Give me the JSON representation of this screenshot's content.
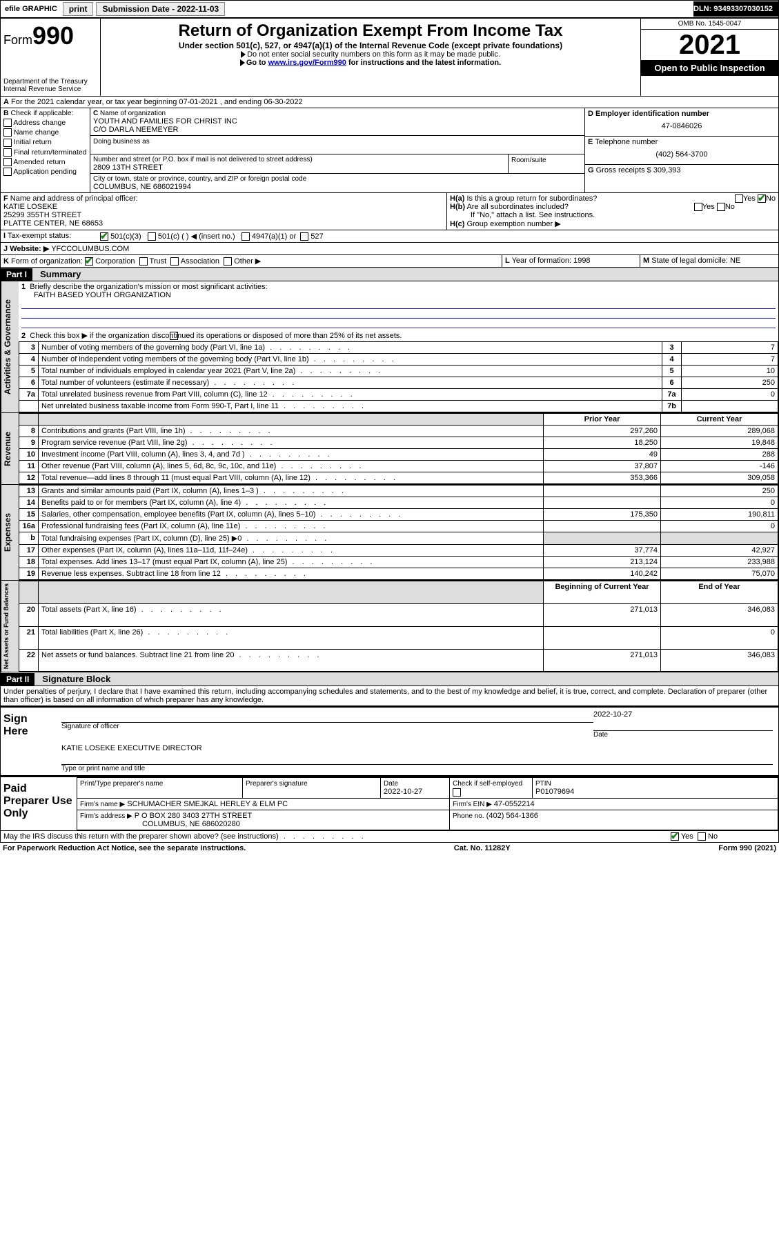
{
  "topbar": {
    "efile": "efile GRAPHIC",
    "print": "print",
    "subdate_label": "Submission Date - 2022-11-03",
    "dln": "DLN: 93493307030152"
  },
  "header": {
    "form_word": "Form",
    "form_num": "990",
    "dept": "Department of the Treasury",
    "irs": "Internal Revenue Service",
    "title": "Return of Organization Exempt From Income Tax",
    "sub": "Under section 501(c), 527, or 4947(a)(1) of the Internal Revenue Code (except private foundations)",
    "note1": "Do not enter social security numbers on this form as it may be made public.",
    "note2_pre": "Go to ",
    "note2_link": "www.irs.gov/Form990",
    "note2_post": " for instructions and the latest information.",
    "omb": "OMB No. 1545-0047",
    "year": "2021",
    "open": "Open to Public Inspection"
  },
  "A": {
    "line": "For the 2021 calendar year, or tax year beginning 07-01-2021   , and ending 06-30-2022"
  },
  "B": {
    "title": "Check if applicable:",
    "opts": [
      "Address change",
      "Name change",
      "Initial return",
      "Final return/terminated",
      "Amended return",
      "Application pending"
    ]
  },
  "C": {
    "name_label": "Name of organization",
    "name": "YOUTH AND FAMILIES FOR CHRIST INC",
    "co": "C/O DARLA NEEMEYER",
    "dba_label": "Doing business as",
    "street_label": "Number and street (or P.O. box if mail is not delivered to street address)",
    "room_label": "Room/suite",
    "street": "2809 13TH STREET",
    "city_label": "City or town, state or province, country, and ZIP or foreign postal code",
    "city": "COLUMBUS, NE  686021994"
  },
  "D": {
    "label": "Employer identification number",
    "value": "47-0846026"
  },
  "E": {
    "label": "Telephone number",
    "value": "(402) 564-3700"
  },
  "G": {
    "label": "Gross receipts $",
    "value": "309,393"
  },
  "F": {
    "label": "Name and address of principal officer:",
    "l1": "KATIE LOSEKE",
    "l2": "25299 355TH STREET",
    "l3": "PLATTE CENTER, NE  68653"
  },
  "H": {
    "a": "Is this a group return for subordinates?",
    "b": "Are all subordinates included?",
    "note": "If \"No,\" attach a list. See instructions.",
    "c": "Group exemption number ▶",
    "yes": "Yes",
    "no": "No"
  },
  "I": {
    "label": "Tax-exempt status:",
    "opts": [
      "501(c)(3)",
      "501(c) (   ) ◀ (insert no.)",
      "4947(a)(1) or",
      "527"
    ]
  },
  "J": {
    "label": "Website: ▶",
    "value": "YFCCOLUMBUS.COM"
  },
  "K": {
    "label": "Form of organization:",
    "opts": [
      "Corporation",
      "Trust",
      "Association",
      "Other ▶"
    ]
  },
  "L": {
    "label": "Year of formation:",
    "value": "1998"
  },
  "M": {
    "label": "State of legal domicile:",
    "value": "NE"
  },
  "part1": {
    "title": "Part I",
    "name": "Summary",
    "q1": "Briefly describe the organization's mission or most significant activities:",
    "mission": "FAITH BASED YOUTH ORGANIZATION",
    "q2": "Check this box ▶        if the organization discontinued its operations or disposed of more than 25% of its net assets.",
    "rows_gov": [
      {
        "n": "3",
        "t": "Number of voting members of the governing body (Part VI, line 1a)",
        "b": "3",
        "v": "7"
      },
      {
        "n": "4",
        "t": "Number of independent voting members of the governing body (Part VI, line 1b)",
        "b": "4",
        "v": "7"
      },
      {
        "n": "5",
        "t": "Total number of individuals employed in calendar year 2021 (Part V, line 2a)",
        "b": "5",
        "v": "10"
      },
      {
        "n": "6",
        "t": "Total number of volunteers (estimate if necessary)",
        "b": "6",
        "v": "250"
      },
      {
        "n": "7a",
        "t": "Total unrelated business revenue from Part VIII, column (C), line 12",
        "b": "7a",
        "v": "0"
      },
      {
        "n": "",
        "t": "Net unrelated business taxable income from Form 990-T, Part I, line 11",
        "b": "7b",
        "v": ""
      }
    ],
    "col_prior": "Prior Year",
    "col_curr": "Current Year",
    "rev": [
      {
        "n": "8",
        "t": "Contributions and grants (Part VIII, line 1h)",
        "p": "297,260",
        "c": "289,068"
      },
      {
        "n": "9",
        "t": "Program service revenue (Part VIII, line 2g)",
        "p": "18,250",
        "c": "19,848"
      },
      {
        "n": "10",
        "t": "Investment income (Part VIII, column (A), lines 3, 4, and 7d )",
        "p": "49",
        "c": "288"
      },
      {
        "n": "11",
        "t": "Other revenue (Part VIII, column (A), lines 5, 6d, 8c, 9c, 10c, and 11e)",
        "p": "37,807",
        "c": "-146"
      },
      {
        "n": "12",
        "t": "Total revenue—add lines 8 through 11 (must equal Part VIII, column (A), line 12)",
        "p": "353,366",
        "c": "309,058"
      }
    ],
    "exp": [
      {
        "n": "13",
        "t": "Grants and similar amounts paid (Part IX, column (A), lines 1–3 )",
        "p": "",
        "c": "250"
      },
      {
        "n": "14",
        "t": "Benefits paid to or for members (Part IX, column (A), line 4)",
        "p": "",
        "c": "0"
      },
      {
        "n": "15",
        "t": "Salaries, other compensation, employee benefits (Part IX, column (A), lines 5–10)",
        "p": "175,350",
        "c": "190,811"
      },
      {
        "n": "16a",
        "t": "Professional fundraising fees (Part IX, column (A), line 11e)",
        "p": "",
        "c": "0"
      },
      {
        "n": "b",
        "t": "Total fundraising expenses (Part IX, column (D), line 25) ▶0",
        "p": "",
        "c": "",
        "shade": true
      },
      {
        "n": "17",
        "t": "Other expenses (Part IX, column (A), lines 11a–11d, 11f–24e)",
        "p": "37,774",
        "c": "42,927"
      },
      {
        "n": "18",
        "t": "Total expenses. Add lines 13–17 (must equal Part IX, column (A), line 25)",
        "p": "213,124",
        "c": "233,988"
      },
      {
        "n": "19",
        "t": "Revenue less expenses. Subtract line 18 from line 12",
        "p": "140,242",
        "c": "75,070"
      }
    ],
    "col_beg": "Beginning of Current Year",
    "col_end": "End of Year",
    "net": [
      {
        "n": "20",
        "t": "Total assets (Part X, line 16)",
        "p": "271,013",
        "c": "346,083"
      },
      {
        "n": "21",
        "t": "Total liabilities (Part X, line 26)",
        "p": "",
        "c": "0"
      },
      {
        "n": "22",
        "t": "Net assets or fund balances. Subtract line 21 from line 20",
        "p": "271,013",
        "c": "346,083"
      }
    ],
    "sections": {
      "gov": "Activities & Governance",
      "rev": "Revenue",
      "exp": "Expenses",
      "net": "Net Assets or Fund Balances"
    }
  },
  "part2": {
    "title": "Part II",
    "name": "Signature Block",
    "decl": "Under penalties of perjury, I declare that I have examined this return, including accompanying schedules and statements, and to the best of my knowledge and belief, it is true, correct, and complete. Declaration of preparer (other than officer) is based on all information of which preparer has any knowledge.",
    "sign_here": "Sign Here",
    "sig_officer": "Signature of officer",
    "date_lbl": "Date",
    "date_val": "2022-10-27",
    "name_title": "KATIE LOSEKE  EXECUTIVE DIRECTOR",
    "type_name": "Type or print name and title",
    "paid": "Paid Preparer Use Only",
    "pt_name_lbl": "Print/Type preparer's name",
    "pt_sig_lbl": "Preparer's signature",
    "pt_date_lbl": "Date",
    "pt_date": "2022-10-27",
    "pt_check": "Check        if self-employed",
    "ptin_lbl": "PTIN",
    "ptin": "P01079694",
    "firm_name_lbl": "Firm's name   ▶",
    "firm_name": "SCHUMACHER SMEJKAL HERLEY & ELM PC",
    "firm_ein_lbl": "Firm's EIN ▶",
    "firm_ein": "47-0552214",
    "firm_addr_lbl": "Firm's address ▶",
    "firm_addr1": "P O BOX 280 3403 27TH STREET",
    "firm_addr2": "COLUMBUS, NE  686020280",
    "phone_lbl": "Phone no.",
    "phone": "(402) 564-1366",
    "discuss": "May the IRS discuss this return with the preparer shown above? (see instructions)"
  },
  "footer": {
    "pra": "For Paperwork Reduction Act Notice, see the separate instructions.",
    "cat": "Cat. No. 11282Y",
    "form": "Form 990 (2021)"
  }
}
